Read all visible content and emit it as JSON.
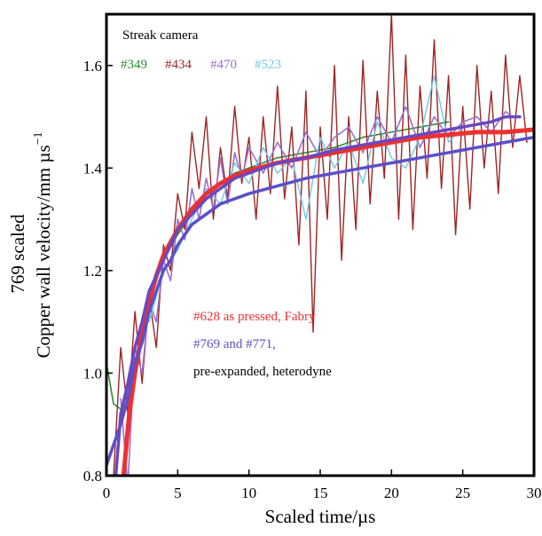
{
  "chart_data": {
    "type": "line",
    "xlabel": "Scaled time/µs",
    "ylabel_line1": "769 scaled",
    "ylabel_line2": "Copper wall velocity/mm µs",
    "ylabel_exp": "−1",
    "xlim": [
      0,
      30
    ],
    "ylim": [
      0.8,
      1.7
    ],
    "x_ticks": [
      0,
      5,
      10,
      15,
      20,
      25,
      30
    ],
    "y_ticks": [
      0.8,
      1.0,
      1.2,
      1.4,
      1.6
    ],
    "y_tick_labels": [
      "0.8",
      "1.0",
      "1.2",
      "1.4",
      "1.6"
    ],
    "grid": false,
    "annotations": {
      "streak_title": "Streak camera",
      "streak_labels": [
        "#349",
        "#434",
        "#470",
        "#523"
      ],
      "fabry_label": "#628 as pressed, Fabry",
      "hetero_label_1": "#769 and #771,",
      "hetero_label_2": "pre-expanded, heterodyne"
    },
    "series": [
      {
        "name": "#349",
        "color": "#2e8b2e",
        "x": [
          0,
          0.5,
          1,
          1.5,
          2,
          2.5,
          3,
          3.5,
          4,
          5,
          6,
          7,
          8,
          9,
          10,
          12,
          14,
          16,
          18,
          20,
          22,
          24
        ],
        "y": [
          1.02,
          0.94,
          0.93,
          0.96,
          1.02,
          1.08,
          1.13,
          1.18,
          1.22,
          1.27,
          1.31,
          1.34,
          1.37,
          1.39,
          1.4,
          1.42,
          1.43,
          1.44,
          1.46,
          1.47,
          1.48,
          1.49
        ]
      },
      {
        "name": "#434",
        "color": "#9c2525",
        "x": [
          0.5,
          1.0,
          1.5,
          2.0,
          2.5,
          3.0,
          3.5,
          4.0,
          4.5,
          5.0,
          5.5,
          6.0,
          6.5,
          7.0,
          7.5,
          8.0,
          8.5,
          9.0,
          9.5,
          10.0,
          10.5,
          11.0,
          11.5,
          12.0,
          12.5,
          13.0,
          13.5,
          14.0,
          14.5,
          15.0,
          15.5,
          16.0,
          16.5,
          17.0,
          17.5,
          18.0,
          18.5,
          19.0,
          19.5,
          20.0,
          20.5,
          21.0,
          21.5,
          22.0,
          22.5,
          23.0,
          23.5,
          24.0,
          24.5,
          25.0,
          25.5,
          26.0,
          26.5,
          27.0,
          27.5,
          28.0,
          28.5,
          29.0,
          29.5
        ],
        "y": [
          0.8,
          1.05,
          0.92,
          1.12,
          0.98,
          1.15,
          1.05,
          1.25,
          1.2,
          1.35,
          1.28,
          1.47,
          1.36,
          1.5,
          1.3,
          1.44,
          1.34,
          1.52,
          1.37,
          1.46,
          1.3,
          1.5,
          1.35,
          1.56,
          1.34,
          1.48,
          1.25,
          1.55,
          1.08,
          1.48,
          1.3,
          1.6,
          1.22,
          1.5,
          1.28,
          1.61,
          1.33,
          1.55,
          1.38,
          1.7,
          1.3,
          1.62,
          1.28,
          1.56,
          1.38,
          1.65,
          1.36,
          1.58,
          1.27,
          1.52,
          1.32,
          1.6,
          1.4,
          1.55,
          1.35,
          1.62,
          1.44,
          1.58,
          1.45
        ]
      },
      {
        "name": "#470",
        "color": "#9b6fd0",
        "x": [
          1,
          1.5,
          2,
          2.5,
          3,
          3.5,
          4,
          4.5,
          5,
          5.5,
          6,
          6.5,
          7,
          7.5,
          8,
          8.5,
          9,
          9.5,
          10,
          11,
          12,
          13,
          14,
          15,
          16,
          17,
          18,
          19,
          20,
          21,
          22,
          23,
          24,
          25,
          26,
          27,
          28,
          28.5
        ],
        "y": [
          0.95,
          0.78,
          1.05,
          1.0,
          1.14,
          1.1,
          1.22,
          1.18,
          1.3,
          1.26,
          1.36,
          1.3,
          1.38,
          1.32,
          1.42,
          1.33,
          1.43,
          1.38,
          1.44,
          1.39,
          1.45,
          1.4,
          1.47,
          1.42,
          1.46,
          1.48,
          1.43,
          1.5,
          1.45,
          1.52,
          1.44,
          1.5,
          1.46,
          1.49,
          1.5,
          1.47,
          1.51,
          1.5
        ]
      },
      {
        "name": "#523",
        "color": "#6ec8e8",
        "x": [
          3,
          4,
          5,
          6,
          7,
          8,
          9,
          10,
          11,
          12,
          13,
          14,
          15,
          16,
          17,
          18,
          19,
          20,
          21,
          22,
          23,
          24,
          25
        ],
        "y": [
          1.1,
          1.2,
          1.24,
          1.3,
          1.36,
          1.33,
          1.41,
          1.37,
          1.44,
          1.39,
          1.42,
          1.3,
          1.46,
          1.4,
          1.45,
          1.37,
          1.49,
          1.42,
          1.4,
          1.46,
          1.58,
          1.45,
          1.48
        ]
      },
      {
        "name": "#628 as pressed, Fabry",
        "color": "#ee3030",
        "x": [
          1.2,
          1.6,
          2,
          2.5,
          3,
          3.5,
          4,
          5,
          6,
          7,
          8,
          9,
          10,
          12,
          14,
          16,
          18,
          20,
          22,
          24,
          26,
          28,
          30
        ],
        "y": [
          0.8,
          0.92,
          1.0,
          1.08,
          1.14,
          1.19,
          1.23,
          1.28,
          1.32,
          1.35,
          1.37,
          1.385,
          1.395,
          1.41,
          1.42,
          1.43,
          1.44,
          1.45,
          1.46,
          1.465,
          1.47,
          1.47,
          1.475
        ]
      },
      {
        "name": "#769 and #771",
        "color": "#5a50c8",
        "x": [
          0,
          0.5,
          1,
          1.5,
          2,
          2.5,
          3,
          3.5,
          4,
          4.5,
          5,
          5.5,
          6,
          7,
          8,
          9,
          10,
          12,
          14,
          16,
          18,
          20,
          22,
          24,
          26,
          28,
          30
        ],
        "y": [
          0.82,
          0.86,
          0.9,
          0.95,
          1.02,
          1.06,
          1.12,
          1.16,
          1.2,
          1.22,
          1.25,
          1.27,
          1.29,
          1.31,
          1.33,
          1.34,
          1.35,
          1.365,
          1.38,
          1.39,
          1.4,
          1.41,
          1.42,
          1.43,
          1.44,
          1.45,
          1.46
        ]
      },
      {
        "name": "#769 and #771 (second)",
        "color": "#6a48c0",
        "x": [
          0.6,
          1,
          1.5,
          2,
          2.5,
          3,
          3.5,
          4,
          4.5,
          5,
          6,
          7,
          8,
          9,
          10,
          12,
          14,
          16,
          18,
          20,
          22,
          24,
          26,
          27,
          28,
          29
        ],
        "y": [
          0.78,
          0.92,
          0.98,
          1.05,
          1.1,
          1.16,
          1.19,
          1.22,
          1.25,
          1.28,
          1.31,
          1.34,
          1.36,
          1.38,
          1.39,
          1.41,
          1.42,
          1.435,
          1.445,
          1.455,
          1.465,
          1.475,
          1.485,
          1.49,
          1.5,
          1.5
        ]
      }
    ]
  }
}
